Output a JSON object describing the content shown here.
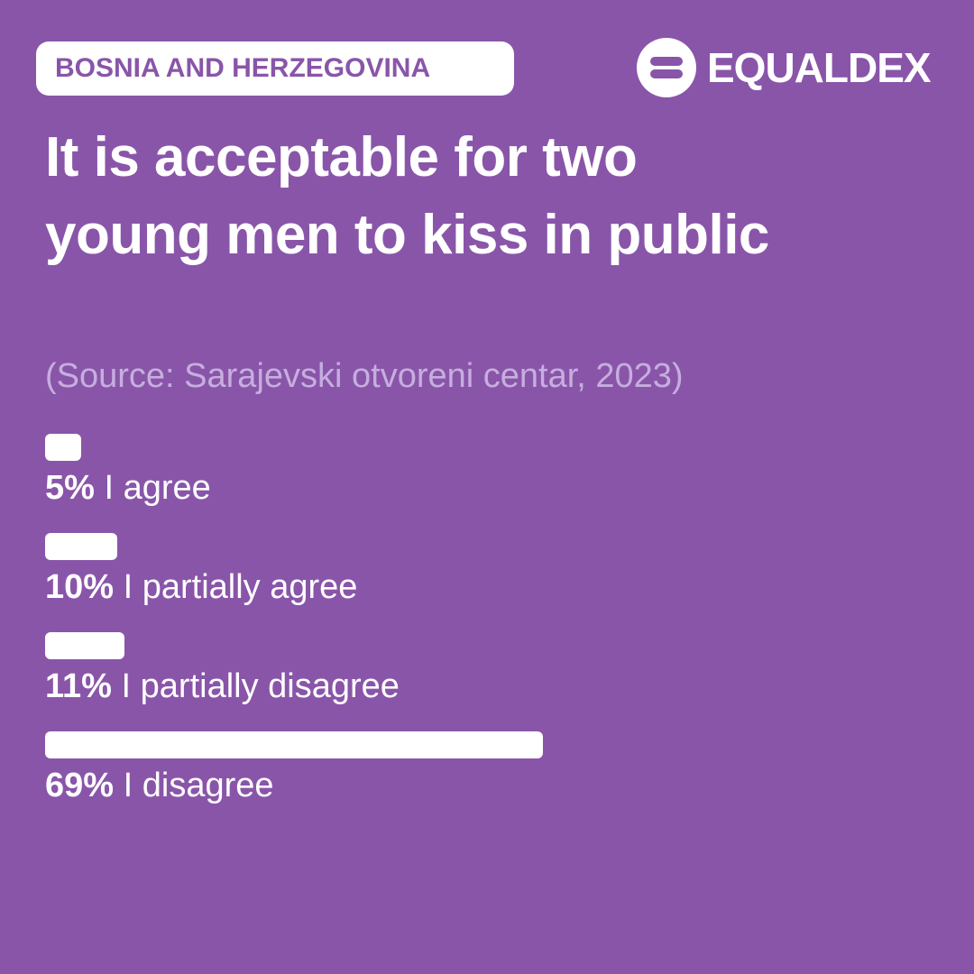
{
  "chart_data": {
    "type": "bar",
    "tag": "BOSNIA AND HERZEGOVINA",
    "brand": "EQUALDEX",
    "title": "It is acceptable for two young men to kiss in public",
    "source": "(Source: Sarajevski otvoreni centar, 2023)",
    "categories": [
      "I agree",
      "I partially agree",
      "I partially disagree",
      "I disagree"
    ],
    "values": [
      5,
      10,
      11,
      69
    ],
    "value_labels": [
      "5%",
      "10%",
      "11%",
      "69%"
    ],
    "color": "#ffffff"
  }
}
